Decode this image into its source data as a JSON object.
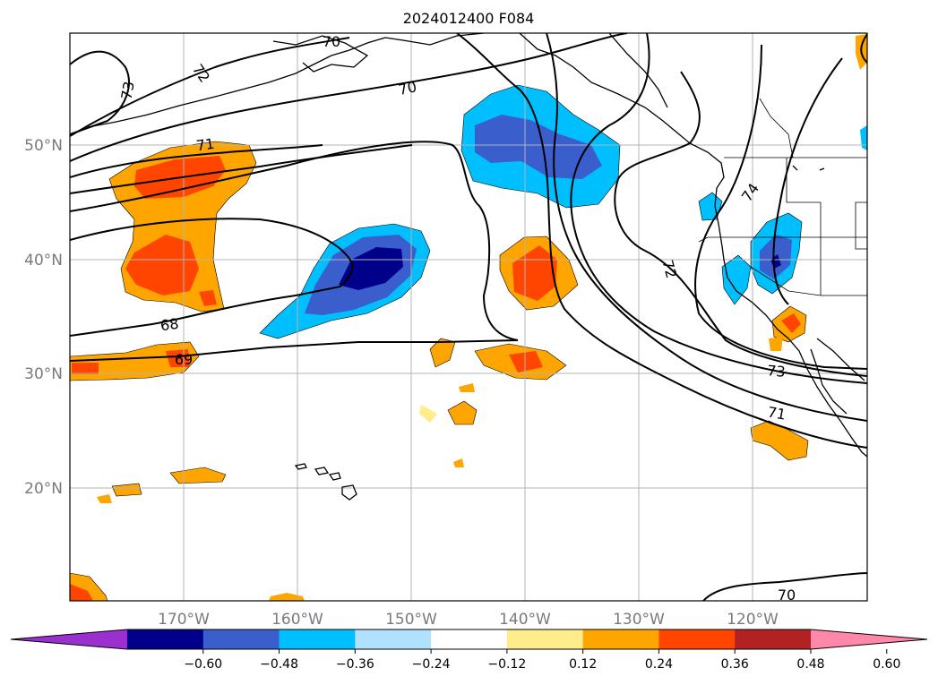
{
  "title": "2024012400 F084",
  "lat_labels": [
    "50°N",
    "40°N",
    "30°N",
    "20°N"
  ],
  "lon_labels": [
    "170°W",
    "160°W",
    "150°W",
    "140°W",
    "130°W",
    "120°W"
  ],
  "contour_labels": [
    "70",
    "72",
    "73",
    "70",
    "71",
    "68",
    "69",
    "72",
    "74",
    "73",
    "71",
    "70"
  ],
  "colorbar": {
    "ticks": [
      "−0.60",
      "−0.48",
      "−0.36",
      "−0.24",
      "−0.12",
      "0.12",
      "0.24",
      "0.36",
      "0.48",
      "0.60"
    ],
    "colors": [
      "#9b30d0",
      "#00008b",
      "#3a5fcd",
      "#00bfff",
      "#b0e2ff",
      "#ffffff",
      "#ffec8b",
      "#ffa500",
      "#ff4500",
      "#b22222",
      "#ff88aa"
    ]
  },
  "colors": {
    "land_outline": "#000000",
    "grid": "#b3b3b3",
    "contour": "#000000"
  }
}
